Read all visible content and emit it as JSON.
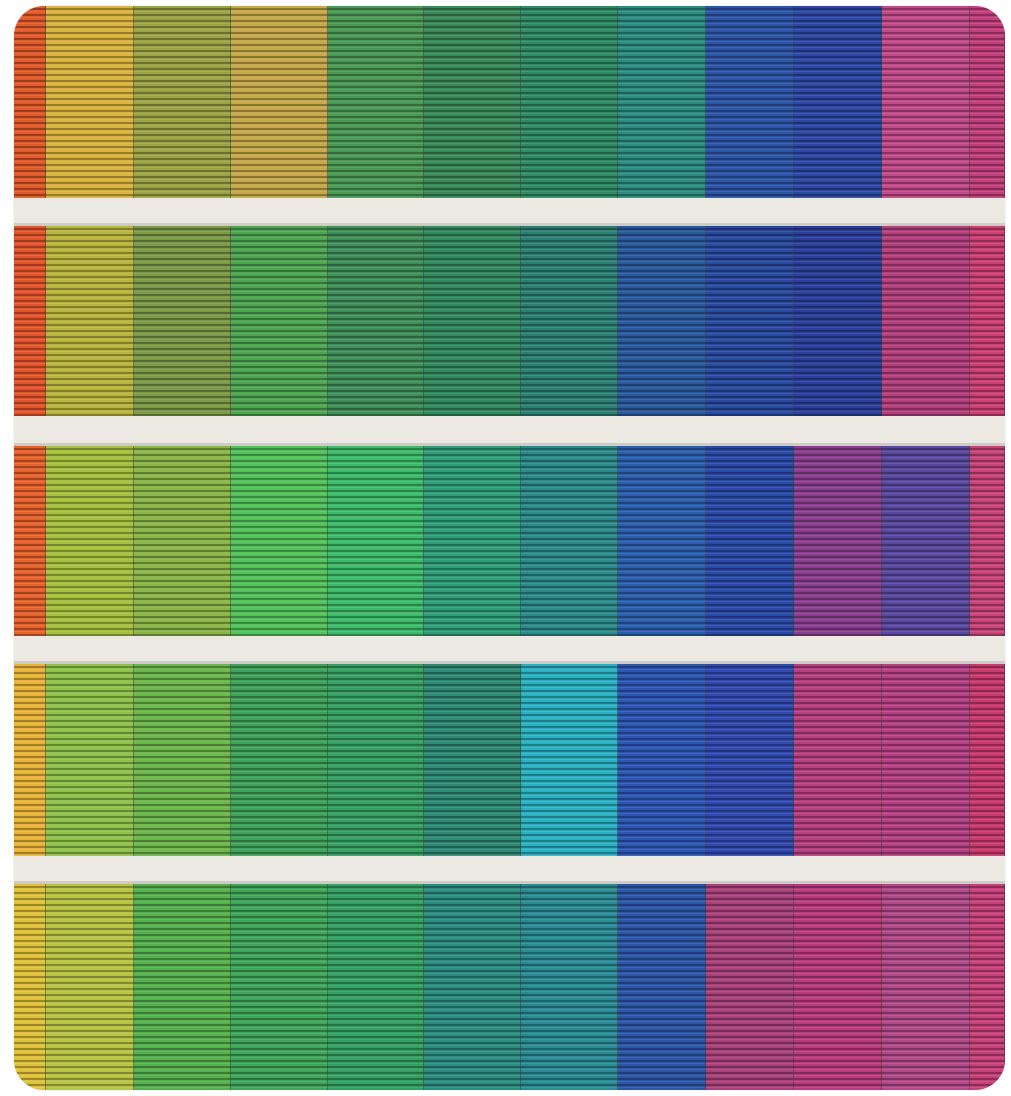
{
  "image": {
    "subject": "",
    "colors": {
      "slab": "#ece9e3",
      "mullion": "#3a3f44",
      "slat_dark_overlay": "rgba(0,0,0,0.30)",
      "slat_light_overlay": "rgba(255,255,255,0.10)"
    },
    "columns": [
      {
        "name": "red-orange",
        "floors": [
          "#e05a2a",
          "#e2552c",
          "#e8622e",
          "#e8b53a",
          "#e0c23a"
        ]
      },
      {
        "name": "yellow",
        "floors": [
          "#d9b43e",
          "#b9b640",
          "#a8c040",
          "#8fc24a",
          "#b7c544"
        ]
      },
      {
        "name": "olive",
        "floors": [
          "#9aa445",
          "#7c9a48",
          "#8ab548",
          "#6eb74c",
          "#55b04e"
        ]
      },
      {
        "name": "yellow-green",
        "floors": [
          "#c5a94a",
          "#4ea653",
          "#54c25a",
          "#3ea25a",
          "#3fa65a"
        ]
      },
      {
        "name": "green",
        "floors": [
          "#4a9a55",
          "#3f8f59",
          "#3dbb6a",
          "#35a061",
          "#35a063"
        ]
      },
      {
        "name": "forest",
        "floors": [
          "#3a8a5a",
          "#328a5e",
          "#2f9e78",
          "#2f8a74",
          "#2c8c80"
        ]
      },
      {
        "name": "teal",
        "floors": [
          "#2f8a66",
          "#2c7f73",
          "#2c8a8a",
          "#2ab0c2",
          "#2a8c92"
        ]
      },
      {
        "name": "teal-blue",
        "floors": [
          "#2c8c80",
          "#2a5a9e",
          "#2b5fae",
          "#2d56b4",
          "#2d56a8"
        ]
      },
      {
        "name": "blue",
        "floors": [
          "#2c55a8",
          "#2a4aa0",
          "#2b4aa8",
          "#3149ae",
          "#a9417a"
        ]
      },
      {
        "name": "navy",
        "floors": [
          "#2c48a4",
          "#2b3f9a",
          "#8a3f8e",
          "#b63f80",
          "#b93b7e"
        ]
      },
      {
        "name": "magenta",
        "floors": [
          "#c14a8a",
          "#b4407e",
          "#5a48a0",
          "#b54184",
          "#b24a8a"
        ]
      },
      {
        "name": "pink",
        "floors": [
          "#c23f7c",
          "#cc3f72",
          "#c84478",
          "#c93a6c",
          "#c6407a"
        ]
      }
    ]
  }
}
